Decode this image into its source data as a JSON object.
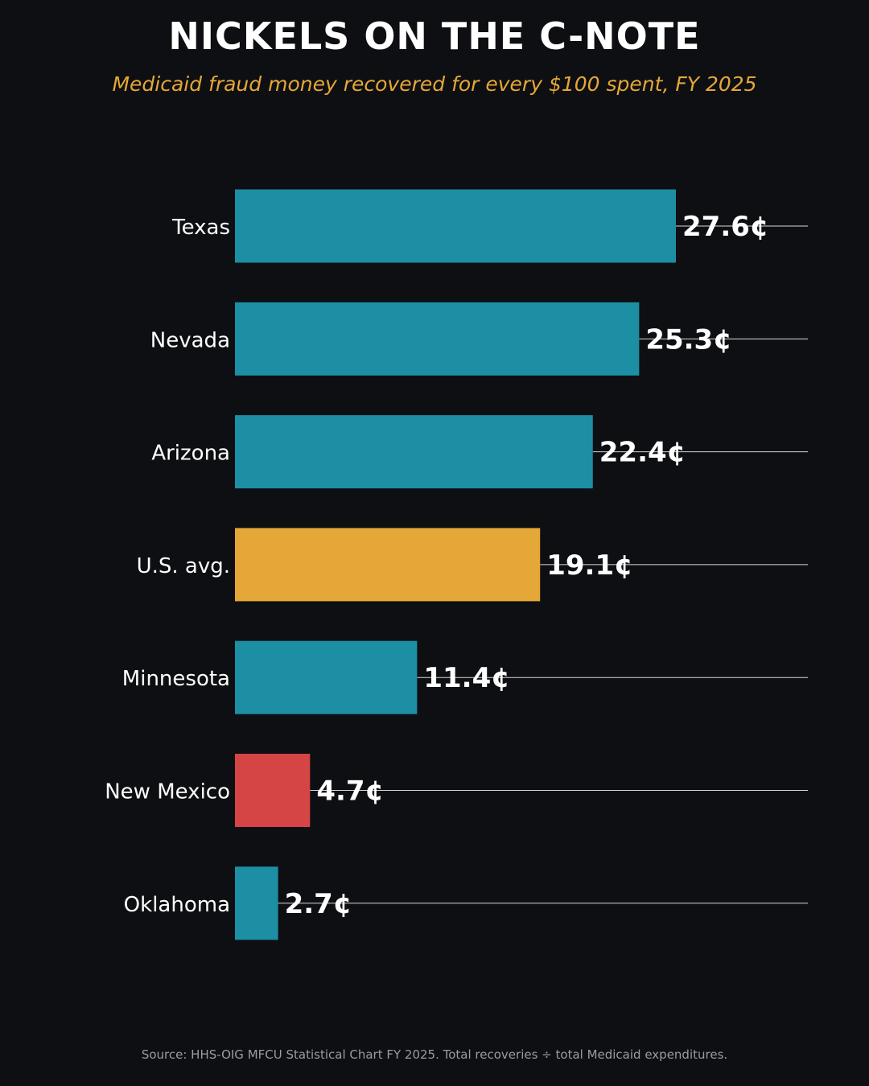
{
  "header": {
    "title": "NICKELS ON THE C-NOTE",
    "subtitle": "Medicaid fraud money recovered for every $100 spent, FY 2025"
  },
  "footer": {
    "source": "Source: HHS-OIG MFCU Statistical Chart FY 2025. Total recoveries ÷ total Medicaid expenditures."
  },
  "colors": {
    "background": "#0e0f13",
    "default_bar": "#1d8fa5",
    "highlight_bar": "#e5a737",
    "low_bar": "#d64545",
    "title": "#ffffff",
    "subtitle": "#e5a737",
    "source": "#9a9ca3"
  },
  "chart_data": {
    "type": "bar",
    "orientation": "horizontal",
    "title": "NICKELS ON THE C-NOTE",
    "subtitle": "Medicaid fraud money recovered for every $100 spent, FY 2025",
    "unit": "¢",
    "categories": [
      "Texas",
      "Nevada",
      "Arizona",
      "U.S. avg.",
      "Minnesota",
      "New Mexico",
      "Oklahoma"
    ],
    "values": [
      27.6,
      25.3,
      22.4,
      19.1,
      11.4,
      4.7,
      2.7
    ],
    "value_labels": [
      "27.6¢",
      "25.3¢",
      "22.4¢",
      "19.1¢",
      "11.4¢",
      "4.7¢",
      "2.7¢"
    ],
    "bar_colors": [
      "#1d8fa5",
      "#1d8fa5",
      "#1d8fa5",
      "#e5a737",
      "#1d8fa5",
      "#d64545",
      "#1d8fa5"
    ],
    "xlim": [
      0,
      36
    ],
    "grid": false,
    "legend": "none"
  }
}
